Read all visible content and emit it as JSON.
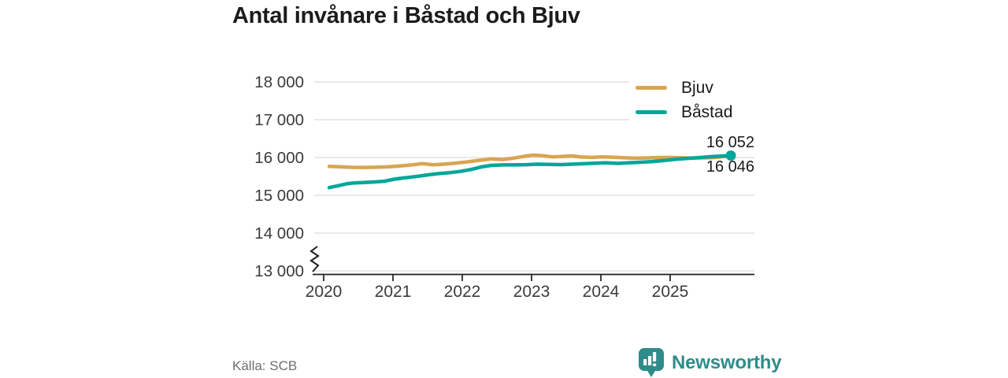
{
  "title": "Antal invånare i Båstad och Bjuv",
  "source": "Källa: SCB",
  "brand": {
    "name": "Newsworthy",
    "color": "#2f8c8a",
    "logo_icon": "speech-bubble-bar-chart-exclamation"
  },
  "colors": {
    "gridline": "#e6e6e6",
    "axis": "#1f1f1f",
    "tick_text": "#3b3b3b",
    "title_text": "#1c1c1c"
  },
  "chart_data": {
    "type": "line",
    "title": "Antal invånare i Båstad och Bjuv",
    "xlabel": "",
    "ylabel": "",
    "grid": "horizontal",
    "legend_position": "top-right",
    "x_axis": {
      "tick_values": [
        2020,
        2021,
        2022,
        2023,
        2024,
        2025
      ],
      "tick_labels": [
        "2020",
        "2021",
        "2022",
        "2023",
        "2024",
        "2025"
      ],
      "range": [
        2020.0,
        2026.2
      ]
    },
    "y_axis": {
      "tick_values": [
        13000,
        14000,
        15000,
        16000,
        17000,
        18000
      ],
      "tick_labels": [
        "13 000",
        "14 000",
        "15 000",
        "16 000",
        "17 000",
        "18 000"
      ],
      "range": [
        13000,
        18000
      ],
      "axis_break": true
    },
    "series": [
      {
        "name": "Bjuv",
        "color": "#d9a551",
        "end_label": "16 046",
        "end_value": 16046,
        "end_dot": false,
        "points": [
          [
            2020.08,
            15765
          ],
          [
            2020.25,
            15752
          ],
          [
            2020.42,
            15740
          ],
          [
            2020.58,
            15737
          ],
          [
            2020.75,
            15742
          ],
          [
            2020.92,
            15753
          ],
          [
            2021.08,
            15772
          ],
          [
            2021.25,
            15801
          ],
          [
            2021.42,
            15838
          ],
          [
            2021.58,
            15808
          ],
          [
            2021.75,
            15824
          ],
          [
            2021.92,
            15854
          ],
          [
            2022.08,
            15886
          ],
          [
            2022.25,
            15928
          ],
          [
            2022.42,
            15962
          ],
          [
            2022.58,
            15946
          ],
          [
            2022.75,
            15986
          ],
          [
            2022.92,
            16040
          ],
          [
            2023.02,
            16062
          ],
          [
            2023.17,
            16046
          ],
          [
            2023.3,
            16016
          ],
          [
            2023.45,
            16030
          ],
          [
            2023.58,
            16042
          ],
          [
            2023.72,
            16012
          ],
          [
            2023.88,
            16003
          ],
          [
            2024.02,
            16016
          ],
          [
            2024.2,
            16004
          ],
          [
            2024.38,
            15990
          ],
          [
            2024.52,
            15981
          ],
          [
            2024.68,
            15989
          ],
          [
            2024.85,
            15998
          ],
          [
            2025.0,
            16003
          ],
          [
            2025.15,
            15993
          ],
          [
            2025.3,
            15985
          ],
          [
            2025.45,
            15989
          ],
          [
            2025.6,
            15996
          ],
          [
            2025.72,
            16012
          ],
          [
            2025.875,
            16046
          ]
        ]
      },
      {
        "name": "Båstad",
        "color": "#00a79a",
        "end_label": "16 052",
        "end_value": 16052,
        "end_dot": true,
        "points": [
          [
            2020.08,
            15205
          ],
          [
            2020.2,
            15248
          ],
          [
            2020.33,
            15305
          ],
          [
            2020.45,
            15330
          ],
          [
            2020.58,
            15340
          ],
          [
            2020.72,
            15352
          ],
          [
            2020.88,
            15372
          ],
          [
            2021.02,
            15428
          ],
          [
            2021.17,
            15462
          ],
          [
            2021.33,
            15495
          ],
          [
            2021.5,
            15540
          ],
          [
            2021.65,
            15572
          ],
          [
            2021.82,
            15600
          ],
          [
            2021.97,
            15632
          ],
          [
            2022.12,
            15682
          ],
          [
            2022.28,
            15752
          ],
          [
            2022.42,
            15792
          ],
          [
            2022.58,
            15804
          ],
          [
            2022.75,
            15804
          ],
          [
            2022.92,
            15810
          ],
          [
            2023.08,
            15822
          ],
          [
            2023.25,
            15819
          ],
          [
            2023.42,
            15812
          ],
          [
            2023.58,
            15822
          ],
          [
            2023.75,
            15836
          ],
          [
            2023.92,
            15851
          ],
          [
            2024.08,
            15858
          ],
          [
            2024.25,
            15843
          ],
          [
            2024.42,
            15863
          ],
          [
            2024.58,
            15876
          ],
          [
            2024.75,
            15893
          ],
          [
            2024.92,
            15922
          ],
          [
            2025.08,
            15952
          ],
          [
            2025.25,
            15978
          ],
          [
            2025.42,
            15998
          ],
          [
            2025.58,
            16020
          ],
          [
            2025.75,
            16040
          ],
          [
            2025.875,
            16052
          ]
        ]
      }
    ]
  }
}
